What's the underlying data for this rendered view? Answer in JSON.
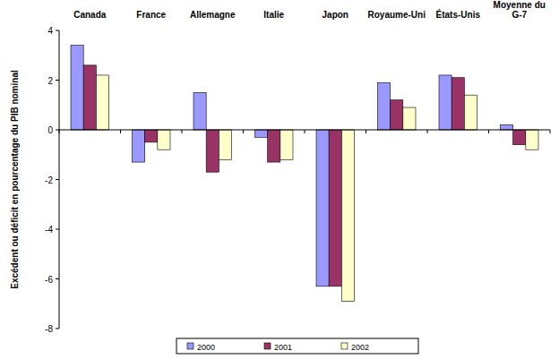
{
  "chart_data": {
    "type": "bar",
    "y_label": "Excédent ou déficit en pourcentage du PIB nominal",
    "categories": [
      "Canada",
      "France",
      "Allemagne",
      "Italie",
      "Japon",
      "Royaume-Uni",
      "États-Unis",
      "Moyenne du G-7"
    ],
    "series": [
      {
        "name": "2000",
        "color": "#9999ff",
        "values": [
          3.4,
          -1.3,
          1.5,
          -0.3,
          -6.3,
          1.9,
          2.2,
          0.2
        ]
      },
      {
        "name": "2001",
        "color": "#993366",
        "values": [
          2.6,
          -0.5,
          -1.7,
          -1.3,
          -6.3,
          1.2,
          2.1,
          -0.6
        ]
      },
      {
        "name": "2002",
        "color": "#ffffcc",
        "values": [
          2.2,
          -0.8,
          -1.2,
          -1.2,
          -6.9,
          0.9,
          1.4,
          -0.8
        ]
      }
    ],
    "ylim": [
      -8,
      4
    ],
    "yticks": [
      -8,
      -6,
      -4,
      -2,
      0,
      2,
      4
    ],
    "grid": false,
    "legend": "bottom"
  }
}
